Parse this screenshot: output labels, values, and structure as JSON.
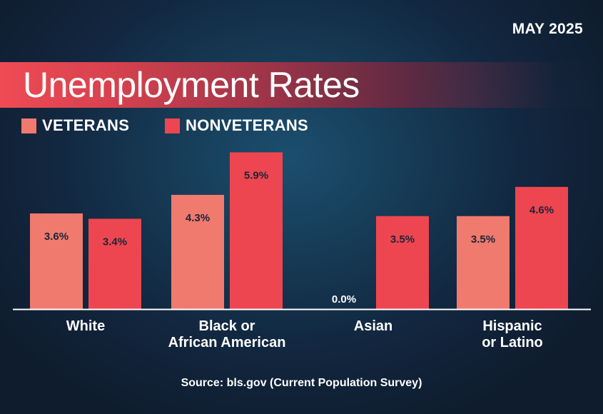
{
  "header": {
    "date": "MAY 2025",
    "title": "Unemployment Rates"
  },
  "colors": {
    "veterans": "#f07a6e",
    "nonveterans": "#ee4650",
    "value_label": "#1b2438",
    "axis": "#ffffff"
  },
  "legend": [
    {
      "label": "VETERANS"
    },
    {
      "label": "NONVETERANS"
    }
  ],
  "chart_data": {
    "type": "bar",
    "title": "Unemployment Rates",
    "categories": [
      [
        "White"
      ],
      [
        "Black or",
        "African American"
      ],
      [
        "Asian"
      ],
      [
        "Hispanic",
        "or Latino"
      ]
    ],
    "series": [
      {
        "name": "VETERANS",
        "values": [
          3.6,
          4.3,
          0.0,
          3.5
        ],
        "labels": [
          "3.6%",
          "4.3%",
          "0.0%",
          "3.5%"
        ]
      },
      {
        "name": "NONVETERANS",
        "values": [
          3.4,
          5.9,
          3.5,
          4.6
        ],
        "labels": [
          "3.4%",
          "5.9%",
          "3.5%",
          "4.6%"
        ]
      }
    ],
    "ylim": [
      0,
      6.1
    ],
    "grid": false,
    "legend_position": "top-left"
  },
  "footer": {
    "source": "Source: bls.gov (Current Population Survey)"
  }
}
